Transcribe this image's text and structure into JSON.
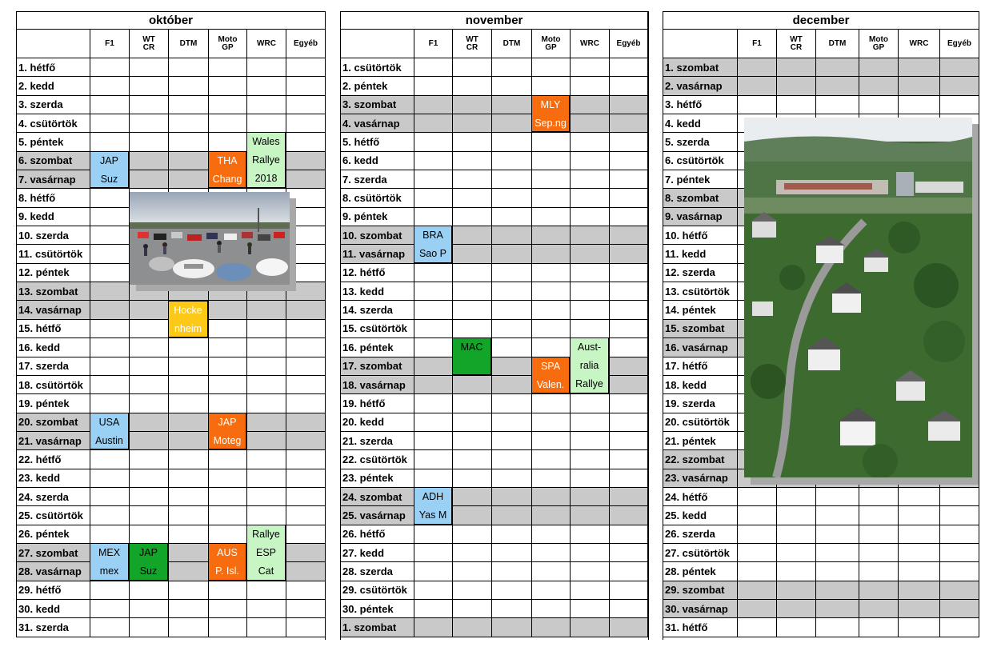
{
  "headers": [
    "F1",
    "WT CR",
    "DTM",
    "Moto GP",
    "WRC",
    "Egyéb"
  ],
  "months": [
    {
      "name": "október",
      "days": [
        "1. hétfő",
        "2. kedd",
        "3. szerda",
        "4. csütörtök",
        "5. péntek",
        "6. szombat",
        "7. vasárnap",
        "8. hétfő",
        "9. kedd",
        "10. szerda",
        "11. csütörtök",
        "12. péntek",
        "13. szombat",
        "14. vasárnap",
        "15. hétfő",
        "16. kedd",
        "17. szerda",
        "18. csütörtök",
        "19. péntek",
        "20. szombat",
        "21. vasárnap",
        "22. hétfő",
        "23. kedd",
        "24. szerda",
        "25. csütörtök",
        "26. péntek",
        "27. szombat",
        "28. vasárnap",
        "29. hétfő",
        "30. kedd",
        "31. szerda"
      ],
      "weekend_rows": [
        5,
        6,
        12,
        13,
        19,
        20,
        26,
        27
      ],
      "events": [
        {
          "col": 0,
          "row": 5,
          "span": 2,
          "color": "blue",
          "lines": [
            "JAP",
            "Suz"
          ]
        },
        {
          "col": 3,
          "row": 5,
          "span": 2,
          "color": "orange",
          "lines": [
            "THA",
            "Chang"
          ]
        },
        {
          "col": 4,
          "row": 4,
          "span": 3,
          "color": "lgreen",
          "lines": [
            "Wales",
            "Rallye",
            "2018"
          ]
        },
        {
          "col": 2,
          "row": 13,
          "span": 2,
          "color": "yellow",
          "lines": [
            "Hocke",
            "nheim"
          ]
        },
        {
          "col": 0,
          "row": 19,
          "span": 2,
          "color": "blue",
          "lines": [
            "USA",
            "Austin"
          ]
        },
        {
          "col": 3,
          "row": 19,
          "span": 2,
          "color": "orange",
          "lines": [
            "JAP",
            "Moteg"
          ]
        },
        {
          "col": 0,
          "row": 26,
          "span": 2,
          "color": "blue",
          "lines": [
            "MEX",
            "mex"
          ]
        },
        {
          "col": 1,
          "row": 26,
          "span": 2,
          "color": "green",
          "lines": [
            "JAP",
            "Suz"
          ]
        },
        {
          "col": 3,
          "row": 26,
          "span": 2,
          "color": "orange",
          "lines": [
            "AUS",
            "P. Isl."
          ]
        },
        {
          "col": 4,
          "row": 25,
          "span": 3,
          "color": "lgreen",
          "lines": [
            "Rallye",
            "ESP",
            "Cat"
          ]
        }
      ]
    },
    {
      "name": "november",
      "days": [
        "1. csütörtök",
        "2. péntek",
        "3. szombat",
        "4. vasárnap",
        "5. hétfő",
        "6. kedd",
        "7. szerda",
        "8. csütörtök",
        "9. péntek",
        "10. szombat",
        "11. vasárnap",
        "12. hétfő",
        "13. kedd",
        "14. szerda",
        "15. csütörtök",
        "16. péntek",
        "17. szombat",
        "18. vasárnap",
        "19. hétfő",
        "20. kedd",
        "21. szerda",
        "22. csütörtök",
        "23. péntek",
        "24. szombat",
        "25. vasárnap",
        "26. hétfő",
        "27. kedd",
        "28. szerda",
        "29. csütörtök",
        "30. péntek",
        "1. szombat"
      ],
      "weekend_rows": [
        2,
        3,
        9,
        10,
        16,
        17,
        23,
        24,
        30
      ],
      "events": [
        {
          "col": 3,
          "row": 2,
          "span": 2,
          "color": "orange",
          "lines": [
            "MLY",
            "Sep.ng"
          ]
        },
        {
          "col": 0,
          "row": 9,
          "span": 2,
          "color": "blue",
          "lines": [
            "BRA",
            "Sao P"
          ]
        },
        {
          "col": 1,
          "row": 15,
          "span": 2,
          "color": "green",
          "lines": [
            "MAC"
          ]
        },
        {
          "col": 3,
          "row": 16,
          "span": 2,
          "color": "orange",
          "lines": [
            "SPA",
            "Valen."
          ]
        },
        {
          "col": 4,
          "row": 15,
          "span": 3,
          "color": "lgreen",
          "lines": [
            "Aust-",
            "ralia",
            "Rallye"
          ]
        },
        {
          "col": 0,
          "row": 23,
          "span": 2,
          "color": "blue",
          "lines": [
            "ADH",
            "Yas M"
          ]
        }
      ]
    },
    {
      "name": "december",
      "days": [
        "1. szombat",
        "2. vasárnap",
        "3. hétfő",
        "4. kedd",
        "5. szerda",
        "6. csütörtök",
        "7. péntek",
        "8. szombat",
        "9. vasárnap",
        "10. hétfő",
        "11. kedd",
        "12. szerda",
        "13. csütörtök",
        "14. péntek",
        "15. szombat",
        "16. vasárnap",
        "17. hétfő",
        "18. kedd",
        "19. szerda",
        "20. csütörtök",
        "21. péntek",
        "22. szombat",
        "23. vasárnap",
        "24. hétfő",
        "25. kedd",
        "26. szerda",
        "27. csütörtök",
        "28. péntek",
        "29. szombat",
        "30. vasárnap",
        "31. hétfő"
      ],
      "weekend_rows": [
        0,
        1,
        7,
        8,
        14,
        15,
        21,
        22,
        28,
        29
      ],
      "events": []
    }
  ],
  "photos": [
    {
      "name": "car-meetup-photo",
      "description": "parked sports cars"
    },
    {
      "name": "village-aerial-photo",
      "description": "village and racetrack aerial view"
    }
  ],
  "colors": {
    "blue": "#9bd0f5",
    "orange": "#f76c0e",
    "green": "#13a52a",
    "lgreen": "#c7f5c3",
    "yellow": "#fcc916",
    "weekend": "#c9c9c9"
  }
}
